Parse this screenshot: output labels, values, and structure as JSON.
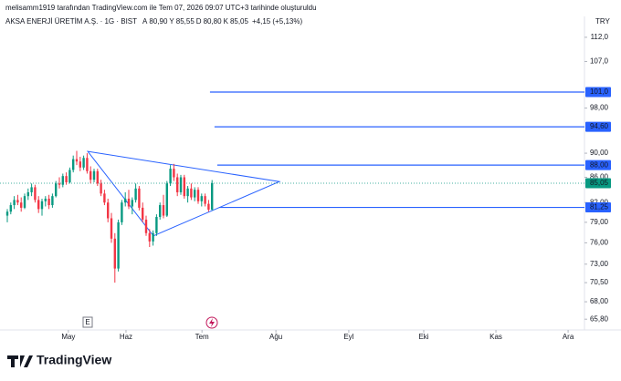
{
  "header": "melisamm1919 tarafından TradingView.com ile Tem 07, 2026 09:07 UTC+3 tarihinde oluşturuldu",
  "legend": {
    "symbol": "AKSA ENERJİ ÜRETİM A.Ş. · 1G · BIST",
    "items": [
      {
        "key": "A",
        "value": "80,90"
      },
      {
        "key": "Y",
        "value": "85,55"
      },
      {
        "key": "D",
        "value": "80,80"
      },
      {
        "key": "K",
        "value": "85,05"
      }
    ],
    "change": "+4,15 (+5,13%)"
  },
  "currency": "TRY",
  "event_marker": "E",
  "brand": "TradingView",
  "chart_data": {
    "type": "candlestick",
    "log_scale": true,
    "grid": false,
    "up_color": "#089981",
    "down_color": "#f23645",
    "categories": [
      null,
      null,
      null,
      null,
      null,
      null,
      null,
      null,
      null,
      null,
      null,
      null,
      null,
      null,
      null,
      null,
      null,
      null,
      null,
      null,
      null,
      null,
      null,
      null,
      null,
      null,
      null,
      null,
      null,
      null,
      null,
      null,
      null,
      null,
      null,
      null,
      null,
      null,
      null,
      null,
      null,
      null,
      null,
      null,
      null,
      null,
      null,
      null,
      null,
      null,
      null,
      null,
      null,
      null,
      null,
      null,
      null,
      null,
      null,
      null
    ],
    "open": [
      80.0,
      80.6,
      81.6,
      82.4,
      82.0,
      81.2,
      83.0,
      83.6,
      84.4,
      82.4,
      81.0,
      82.2,
      82.6,
      81.6,
      83.0,
      85.0,
      84.8,
      86.2,
      85.2,
      87.2,
      89.0,
      88.6,
      87.6,
      89.2,
      87.0,
      85.6,
      87.0,
      85.0,
      83.4,
      82.0,
      79.6,
      76.6,
      72.4,
      79.0,
      82.0,
      82.6,
      81.4,
      82.4,
      84.2,
      81.2,
      79.4,
      77.4,
      76.2,
      77.4,
      79.8,
      81.6,
      80.0,
      85.0,
      87.4,
      86.0,
      83.6,
      86.0,
      83.0,
      84.2,
      82.8,
      84.0,
      82.2,
      83.0,
      81.8,
      80.9
    ],
    "high": [
      81.0,
      82.0,
      83.0,
      83.2,
      82.8,
      83.4,
      84.2,
      85.0,
      84.8,
      83.0,
      82.6,
      83.0,
      83.2,
      83.4,
      85.4,
      86.0,
      86.6,
      86.8,
      87.6,
      89.6,
      90.4,
      89.4,
      89.6,
      90.0,
      87.8,
      87.4,
      87.4,
      85.6,
      84.0,
      82.6,
      80.4,
      77.4,
      79.4,
      82.4,
      83.6,
      84.0,
      82.8,
      85.0,
      84.6,
      82.0,
      80.0,
      78.0,
      77.8,
      80.2,
      82.0,
      83.2,
      85.4,
      88.0,
      88.2,
      86.6,
      86.4,
      86.4,
      84.6,
      85.0,
      84.4,
      84.4,
      83.4,
      83.4,
      82.4,
      85.55
    ],
    "low": [
      79.0,
      80.2,
      81.0,
      81.6,
      80.6,
      81.0,
      82.4,
      83.0,
      82.0,
      80.4,
      80.0,
      81.4,
      81.0,
      81.2,
      82.8,
      84.2,
      84.4,
      84.8,
      85.0,
      86.8,
      88.0,
      87.0,
      87.2,
      86.6,
      85.0,
      85.2,
      84.6,
      83.0,
      81.6,
      79.0,
      76.0,
      70.5,
      72.0,
      78.6,
      81.4,
      81.0,
      80.2,
      82.0,
      80.8,
      79.0,
      77.0,
      75.4,
      75.6,
      77.0,
      79.4,
      79.6,
      79.8,
      84.6,
      85.4,
      83.0,
      83.2,
      82.6,
      82.0,
      82.4,
      82.2,
      81.8,
      81.4,
      81.4,
      80.6,
      80.8
    ],
    "close": [
      80.6,
      81.6,
      82.4,
      82.0,
      81.2,
      83.0,
      83.6,
      84.4,
      82.4,
      81.0,
      82.2,
      82.6,
      81.6,
      83.0,
      85.0,
      84.8,
      86.2,
      85.2,
      87.2,
      89.0,
      88.6,
      87.6,
      89.2,
      87.0,
      85.6,
      87.0,
      85.0,
      83.4,
      82.0,
      79.6,
      76.6,
      72.4,
      79.0,
      82.0,
      82.6,
      81.4,
      82.4,
      84.2,
      81.2,
      79.4,
      77.4,
      76.2,
      77.4,
      79.8,
      81.6,
      80.0,
      85.0,
      87.4,
      86.0,
      83.6,
      86.0,
      83.0,
      84.2,
      82.8,
      84.0,
      82.2,
      83.0,
      81.8,
      80.9,
      85.05
    ],
    "ylim": [
      64.7,
      116.5
    ],
    "yticks": [
      {
        "value": 112,
        "label": "112,0"
      },
      {
        "value": 107,
        "label": "107,0"
      },
      {
        "value": 98,
        "label": "98,00"
      },
      {
        "value": 90,
        "label": "90,00"
      },
      {
        "value": 86,
        "label": "86,00"
      },
      {
        "value": 82,
        "label": "82,00"
      },
      {
        "value": 79,
        "label": "79,00"
      },
      {
        "value": 76,
        "label": "76,00"
      },
      {
        "value": 73,
        "label": "73,00"
      },
      {
        "value": 70.5,
        "label": "70,50"
      },
      {
        "value": 68,
        "label": "68,00"
      },
      {
        "value": 65.8,
        "label": "65,80"
      }
    ],
    "xticks": [
      {
        "value": 17.6,
        "label": "May"
      },
      {
        "value": 34.2,
        "label": "Haz"
      },
      {
        "value": 56.1,
        "label": "Tem"
      },
      {
        "value": 77.4,
        "label": "Ağu"
      },
      {
        "value": 98.4,
        "label": "Eyl"
      },
      {
        "value": 120,
        "label": "Eki"
      },
      {
        "value": 140.8,
        "label": "Kas"
      },
      {
        "value": 161.6,
        "label": "Ara"
      }
    ],
    "levels": [
      {
        "value": 101.0,
        "label": "101,0",
        "start": 58.4
      },
      {
        "value": 94.6,
        "label": "94,60",
        "start": 59.7
      },
      {
        "value": 88.0,
        "label": "88,00",
        "start": 60.5
      },
      {
        "value": 81.25,
        "label": "81,25",
        "start": 61
      }
    ],
    "last_price": {
      "value": 85.05,
      "label": "85,05"
    },
    "triangle": [
      [
        23.2,
        90.3
      ],
      [
        78.4,
        85.3
      ],
      [
        42.1,
        77.0
      ]
    ]
  }
}
